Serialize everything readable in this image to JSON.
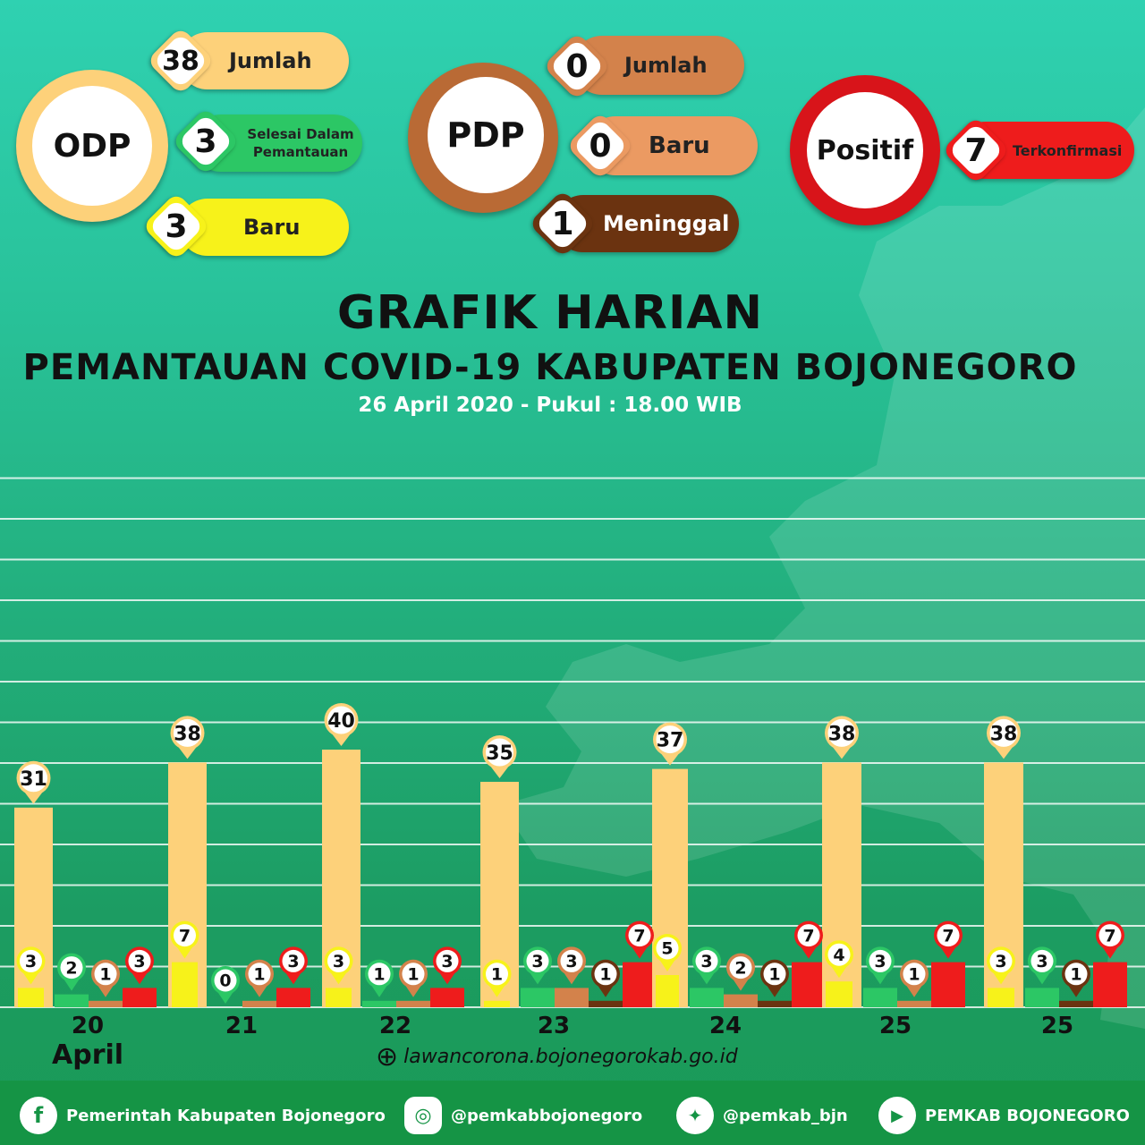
{
  "odp": {
    "label": "ODP",
    "jumlah_value": "38",
    "jumlah_label": "Jumlah",
    "selesai_value": "3",
    "selesai_label_1": "Selesai Dalam",
    "selesai_label_2": "Pemantauan",
    "baru_value": "3",
    "baru_label": "Baru"
  },
  "pdp": {
    "label": "PDP",
    "jumlah_value": "0",
    "jumlah_label": "Jumlah",
    "baru_value": "0",
    "baru_label": "Baru",
    "meninggal_value": "1",
    "meninggal_label": "Meninggal"
  },
  "positif": {
    "label": "Positif",
    "value": "7",
    "value_label": "Terkonfirmasi"
  },
  "header": {
    "title": "GRAFIK HARIAN",
    "subtitle": "PEMANTAUAN COVID-19 KABUPATEN BOJONEGORO",
    "date": "26 April 2020 - Pukul : 18.00 WIB"
  },
  "month_label": "April",
  "website": "lawancorona.bojonegorokab.go.id",
  "footer": {
    "facebook": "Pemerintah Kabupaten Bojonegoro",
    "instagram": "@pemkabbojonegoro",
    "twitter": "@pemkab_bjn",
    "youtube": "PEMKAB BOJONEGORO",
    "facebook_icon": "f",
    "youtube_icon": "▶"
  },
  "colors": {
    "odp_jumlah": "#fdd17a",
    "odp_baru": "#f7f21a",
    "odp_selesai": "#2cc765",
    "pdp": "#d3824b",
    "pdp_meninggal": "#6b3310",
    "positif": "#ee1c1c"
  },
  "chart_data": {
    "type": "bar",
    "categories": [
      "20",
      "21",
      "22",
      "23",
      "24",
      "25",
      "25"
    ],
    "series": [
      {
        "name": "ODP Jumlah",
        "values": [
          31,
          38,
          40,
          35,
          37,
          38,
          38
        ]
      },
      {
        "name": "ODP Baru",
        "values": [
          3,
          7,
          3,
          1,
          5,
          4,
          3
        ]
      },
      {
        "name": "ODP Selesai Dalam Pemantauan",
        "values": [
          2,
          0,
          1,
          3,
          3,
          3,
          3
        ]
      },
      {
        "name": "PDP Jumlah",
        "values": [
          1,
          1,
          1,
          3,
          2,
          1,
          null
        ]
      },
      {
        "name": "PDP Meninggal",
        "values": [
          null,
          null,
          null,
          1,
          1,
          null,
          1
        ]
      },
      {
        "name": "Positif Terkonfirmasi",
        "values": [
          3,
          3,
          3,
          7,
          7,
          7,
          7
        ]
      }
    ],
    "ylim": [
      0,
      70
    ],
    "grid": true
  }
}
